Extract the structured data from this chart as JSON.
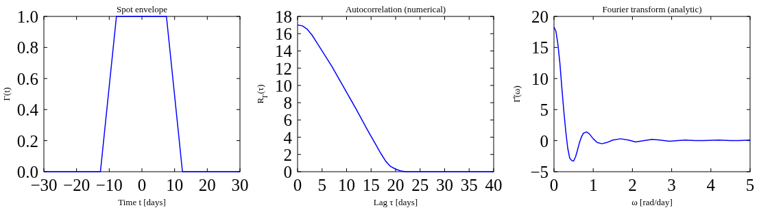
{
  "chart_data": [
    {
      "type": "line",
      "title": "Spot envelope",
      "xlabel": "Time t [days]",
      "ylabel": "Γ(t)",
      "xlim": [
        -30,
        30
      ],
      "ylim": [
        0,
        1
      ],
      "xticks": [
        -30,
        -20,
        -10,
        0,
        10,
        20,
        30
      ],
      "yticks": [
        {
          "value": 0,
          "label": "0.0"
        },
        0.2,
        0.4,
        0.6,
        0.8,
        {
          "value": 1,
          "label": "1.0"
        }
      ],
      "series": [
        {
          "color": "#0000ff",
          "x": [
            -30,
            -12.7,
            -7.8,
            7.5,
            12.4,
            30
          ],
          "values": [
            0,
            0,
            1,
            1,
            0,
            0
          ]
        }
      ]
    },
    {
      "type": "line",
      "title": "Autocorrelation (numerical)",
      "xlabel": "Lag τ [days]",
      "ylabel": "R$_{Γ}$(τ)",
      "xlim": [
        0,
        40
      ],
      "ylim": [
        0,
        18
      ],
      "xticks": [
        0,
        5,
        10,
        15,
        20,
        25,
        30,
        35,
        40
      ],
      "yticks": [
        0,
        2,
        4,
        6,
        8,
        10,
        12,
        14,
        16,
        18
      ],
      "series": [
        {
          "color": "#0000ff",
          "x": [
            0,
            1,
            2,
            3,
            4,
            5,
            7,
            10,
            12,
            14,
            15,
            16,
            17,
            18,
            19,
            20,
            21,
            22,
            25,
            40
          ],
          "values": [
            17,
            16.9,
            16.5,
            15.8,
            14.9,
            14.0,
            12.2,
            9.2,
            7.2,
            5.1,
            4.1,
            3.1,
            2.1,
            1.2,
            0.6,
            0.3,
            0.1,
            0,
            0,
            0
          ]
        }
      ]
    },
    {
      "type": "line",
      "title": "Fourier transform (analytic)",
      "xlabel": "ω [rad/day]",
      "ylabel": "Γ̂(ω)",
      "xlim": [
        0,
        5
      ],
      "ylim": [
        -5,
        20
      ],
      "xticks": [
        0,
        1,
        2,
        3,
        4,
        5
      ],
      "yticks": [
        -5,
        0,
        5,
        10,
        15,
        20
      ],
      "series": [
        {
          "color": "#0000ff",
          "x": [
            0,
            0.05,
            0.1,
            0.15,
            0.2,
            0.25,
            0.3,
            0.35,
            0.4,
            0.45,
            0.5,
            0.55,
            0.6,
            0.65,
            0.7,
            0.75,
            0.83,
            0.9,
            1.0,
            1.1,
            1.22,
            1.35,
            1.5,
            1.7,
            1.9,
            2.08,
            2.3,
            2.5,
            2.7,
            2.95,
            3.15,
            3.35,
            3.6,
            3.8,
            4.2,
            4.5,
            4.7,
            5
          ],
          "values": [
            18.3,
            17.6,
            15.5,
            12.5,
            8.5,
            4.8,
            1.5,
            -1.2,
            -2.8,
            -3.2,
            -3.3,
            -2.6,
            -1.5,
            -0.3,
            0.6,
            1.2,
            1.4,
            1.1,
            0.3,
            -0.3,
            -0.5,
            -0.3,
            0.1,
            0.3,
            0.1,
            -0.2,
            0,
            0.2,
            0.1,
            -0.1,
            0,
            0.1,
            0,
            0,
            0.1,
            0,
            0,
            0.1
          ]
        }
      ]
    }
  ]
}
